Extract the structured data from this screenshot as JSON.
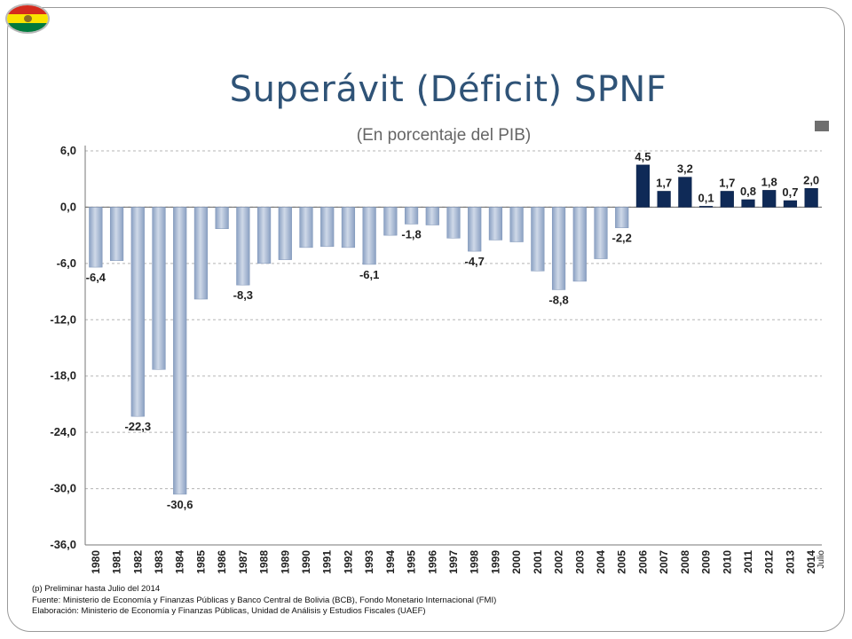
{
  "header": {
    "title": "Superávit (Déficit) SPNF",
    "subtitle": "(En porcentaje del PIB)"
  },
  "colors": {
    "negative_bar": "#9fb3d0",
    "positive_bar": "#0f2a57",
    "title": "#2f5377",
    "flag": [
      "#d52b1e",
      "#f9e300",
      "#007a3d"
    ]
  },
  "chart_data": {
    "type": "bar",
    "title": "Superávit (Déficit) SPNF",
    "subtitle": "(En porcentaje del PIB)",
    "categories": [
      "1980",
      "1981",
      "1982",
      "1983",
      "1984",
      "1985",
      "1986",
      "1987",
      "1988",
      "1989",
      "1990",
      "1991",
      "1992",
      "1993",
      "1994",
      "1995",
      "1996",
      "1997",
      "1998",
      "1999",
      "2000",
      "2001",
      "2002",
      "2003",
      "2004",
      "2005",
      "2006",
      "2007",
      "2008",
      "2009",
      "2010",
      "2011",
      "2012",
      "2013",
      "2014"
    ],
    "tick_sublabels": {
      "2014": "Julio"
    },
    "values": [
      -6.4,
      -5.7,
      -22.3,
      -17.3,
      -30.6,
      -9.8,
      -2.3,
      -8.3,
      -6.0,
      -5.6,
      -4.3,
      -4.2,
      -4.3,
      -6.1,
      -3.0,
      -1.8,
      -1.9,
      -3.3,
      -4.7,
      -3.5,
      -3.7,
      -6.8,
      -8.8,
      -7.9,
      -5.5,
      -2.2,
      4.5,
      1.7,
      3.2,
      0.1,
      1.7,
      0.8,
      1.8,
      0.7,
      2.0
    ],
    "data_labels": {
      "1980": "-6,4",
      "1982": "-22,3",
      "1984": "-30,6",
      "1987": "-8,3",
      "1993": "-6,1",
      "1995": "-1,8",
      "1998": "-4,7",
      "2002": "-8,8",
      "2005": "-2,2",
      "2006": "4,5",
      "2007": "1,7",
      "2008": "3,2",
      "2009": "0,1",
      "2010": "1,7",
      "2011": "0,8",
      "2012": "1,8",
      "2013": "0,7",
      "2014": "2,0"
    },
    "y_ticks": [
      "6,0",
      "0,0",
      "-6,0",
      "-12,0",
      "-18,0",
      "-24,0",
      "-30,0",
      "-36,0"
    ],
    "y_tick_values": [
      6,
      0,
      -6,
      -12,
      -18,
      -24,
      -30,
      -36
    ],
    "ylim": [
      -36,
      6
    ],
    "xlabel": "",
    "ylabel": "",
    "grid": true
  },
  "notes": [
    "(p) Preliminar hasta Julio del 2014",
    "Fuente: Ministerio de Economía y Finanzas Públicas y Banco Central de Bolivia (BCB), Fondo Monetario Internacional (FMI)",
    "Elaboración: Ministerio de Economía y Finanzas Públicas, Unidad de Análisis y Estudios Fiscales (UAEF)"
  ]
}
